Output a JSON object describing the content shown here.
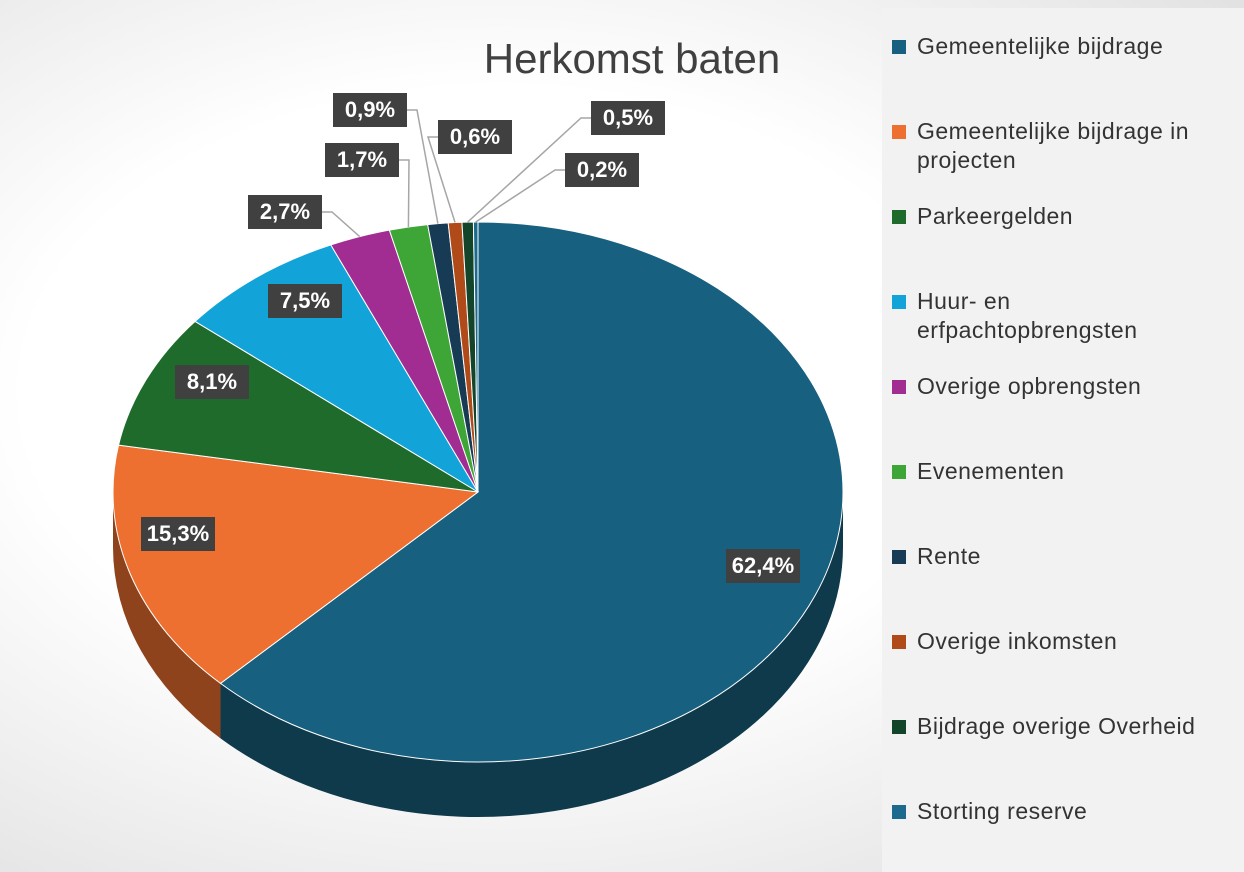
{
  "chart_data": {
    "type": "pie",
    "title": "Herkomst baten",
    "categories": [
      "Gemeentelijke bijdrage",
      "Gemeentelijke bijdrage in projecten",
      "Parkeergelden",
      "Huur- en erfpachtopbrengsten",
      "Overige opbrengsten",
      "Evenementen",
      "Rente",
      "Overige inkomsten",
      "Bijdrage overige Overheid",
      "Storting reserve"
    ],
    "values": [
      62.4,
      15.3,
      8.1,
      7.5,
      2.7,
      1.7,
      0.9,
      0.6,
      0.5,
      0.2
    ],
    "value_labels": [
      "62,4%",
      "15,3%",
      "8,1%",
      "7,5%",
      "2,7%",
      "1,7%",
      "0,9%",
      "0,6%",
      "0,5%",
      "0,2%"
    ],
    "colors": [
      "#17607f",
      "#ed7031",
      "#1f6b2b",
      "#12a3d9",
      "#a12d92",
      "#3ea636",
      "#173a55",
      "#b04a18",
      "#13452a",
      "#1c6a8e"
    ],
    "legend": "right"
  }
}
